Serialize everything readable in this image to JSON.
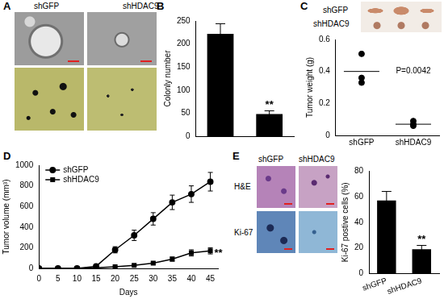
{
  "panel_labels": [
    "A",
    "B",
    "C",
    "D",
    "E"
  ],
  "panel_A": {
    "columns": [
      "shGFP",
      "shHDAC9"
    ]
  },
  "panel_C_photo": {
    "rows": [
      "shGFP",
      "shHDAC9"
    ]
  },
  "panel_E_images": {
    "columns": [
      "shGFP",
      "shHDAC9"
    ],
    "rows": [
      "H&E",
      "Ki-67"
    ]
  },
  "chart_data": [
    {
      "type": "bar",
      "categories": [
        null,
        null
      ],
      "values": [
        222,
        48
      ],
      "errors": [
        22,
        7
      ],
      "color": "#000000",
      "ylabel": "Colonly number",
      "ylim": [
        0,
        250
      ],
      "yticks": [
        0,
        50,
        100,
        150,
        200,
        250
      ],
      "tick_labels": "y",
      "annotations": [
        {
          "text": "**",
          "x": 1
        }
      ]
    },
    {
      "type": "scatter",
      "categories": [
        "shGFP",
        "shHDAC9"
      ],
      "values": [
        [
          0.51,
          0.36,
          0.33
        ],
        [
          0.09,
          0.07,
          0.06
        ]
      ],
      "means": [
        0.4,
        0.07
      ],
      "color": "#000000",
      "ylabel": "Tumor weight (g)",
      "ylim": [
        0,
        0.6
      ],
      "yticks": [
        0,
        0.2,
        0.4,
        0.6
      ],
      "annotations": [
        {
          "text": "P=0.0042",
          "x": "shHDAC9",
          "y": 0.4
        }
      ]
    },
    {
      "type": "line",
      "x": [
        0,
        5,
        10,
        15,
        20,
        25,
        30,
        35,
        40,
        45
      ],
      "series": [
        {
          "name": "shGFP",
          "color": "#000000",
          "marker": "circle",
          "values": [
            0,
            0,
            0,
            20,
            180,
            320,
            480,
            640,
            720,
            840
          ],
          "errors": [
            0,
            0,
            0,
            5,
            30,
            50,
            60,
            70,
            80,
            90
          ]
        },
        {
          "name": "shHDAC9",
          "color": "#000000",
          "marker": "square",
          "values": [
            0,
            0,
            0,
            5,
            15,
            30,
            50,
            90,
            150,
            170
          ],
          "errors": [
            0,
            0,
            0,
            2,
            5,
            8,
            12,
            20,
            30,
            30
          ]
        }
      ],
      "xlabel": "Days",
      "ylabel": "Tumor volume (mm³)",
      "xlim": [
        0,
        47
      ],
      "xticks": [
        0,
        5,
        10,
        15,
        20,
        25,
        30,
        35,
        40,
        45
      ],
      "ylim": [
        0,
        1000
      ],
      "yticks": [
        0,
        200,
        400,
        600,
        800,
        1000
      ],
      "legend": "top-left",
      "annotations": [
        {
          "text": "**",
          "x": 45,
          "series": "shHDAC9"
        }
      ]
    },
    {
      "type": "bar",
      "categories": [
        "shGFP",
        "shHDAC9"
      ],
      "values": [
        57,
        19
      ],
      "errors": [
        7,
        3
      ],
      "color": "#000000",
      "ylabel": "Ki-67 postive cells (%)",
      "ylim": [
        0,
        80
      ],
      "yticks": [
        0,
        20,
        40,
        60,
        80
      ],
      "annotations": [
        {
          "text": "**",
          "x": "shHDAC9"
        }
      ]
    }
  ]
}
